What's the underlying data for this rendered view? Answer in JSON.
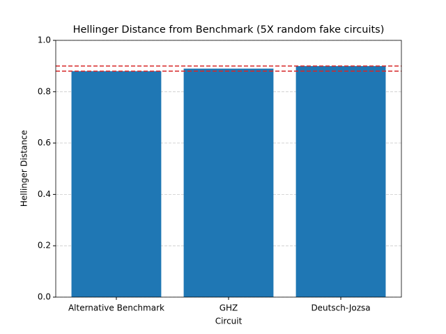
{
  "chart_data": {
    "type": "bar",
    "title": "Hellinger Distance from Benchmark (5X random fake circuits)",
    "x_label": "Circuit",
    "y_label": "Hellinger Distance",
    "categories": [
      "Alternative Benchmark",
      "GHZ",
      "Deutsch-Jozsa"
    ],
    "values": [
      0.88,
      0.89,
      0.9
    ],
    "color": "#1f77b4",
    "ylim": [
      0,
      1
    ],
    "yticks": [
      {
        "value": 0,
        "label": "0.0"
      },
      {
        "value": 0.2,
        "label": "0.2"
      },
      {
        "value": 0.4,
        "label": "0.4"
      },
      {
        "value": 0.6,
        "label": "0.6"
      },
      {
        "value": 0.8,
        "label": "0.8"
      },
      {
        "value": 1,
        "label": "1.0"
      }
    ],
    "grid": true,
    "reference_lines": [
      0.88,
      0.9
    ],
    "reference_color": "#d62728"
  }
}
